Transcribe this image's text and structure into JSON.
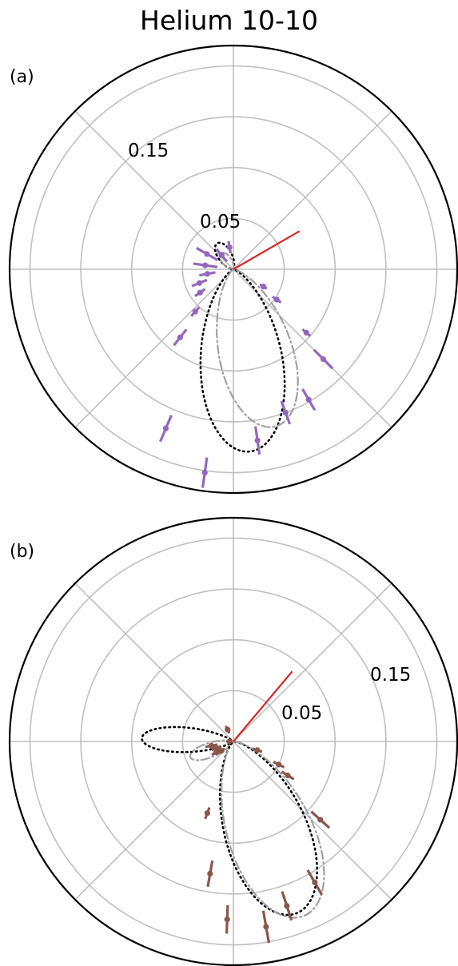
{
  "title": "Helium 10-10",
  "colors": {
    "grid": "#c0c0c0",
    "frame": "#000000",
    "reference_line": "#d62728",
    "series_a": "#9467bd",
    "series_b": "#8c564b",
    "model_dotted": "#000000",
    "model_dashdot": "#a0a0a0"
  },
  "chart_data": [
    {
      "type": "polar",
      "label": "(a)",
      "r_ticks": [
        0.05,
        0.15
      ],
      "r_tick_labels": [
        "0.05",
        "0.15"
      ],
      "r_grid": [
        0.05,
        0.1,
        0.15,
        0.2
      ],
      "r_max": 0.22,
      "angle_grid_deg": [
        0,
        45,
        90,
        135,
        180,
        225,
        270,
        315
      ],
      "reference_line": {
        "angle_deg": 30,
        "length": 0.075
      },
      "measurements": {
        "marker_color": "series_a",
        "points": [
          {
            "angle_deg": 100,
            "r": 0.022,
            "err": 0.006
          },
          {
            "angle_deg": 130,
            "r": 0.018,
            "err": 0.008
          },
          {
            "angle_deg": 150,
            "r": 0.03,
            "err": 0.012
          },
          {
            "angle_deg": 172,
            "r": 0.028,
            "err": 0.012
          },
          {
            "angle_deg": 190,
            "r": 0.026,
            "err": 0.008
          },
          {
            "angle_deg": 202,
            "r": 0.036,
            "err": 0.008
          },
          {
            "angle_deg": 215,
            "r": 0.04,
            "err": 0.006
          },
          {
            "angle_deg": 228,
            "r": 0.056,
            "err": 0.006
          },
          {
            "angle_deg": 232,
            "r": 0.085,
            "err": 0.01
          },
          {
            "angle_deg": 247,
            "r": 0.17,
            "err": 0.014
          },
          {
            "angle_deg": 262,
            "r": 0.202,
            "err": 0.015
          },
          {
            "angle_deg": 278,
            "r": 0.17,
            "err": 0.014
          },
          {
            "angle_deg": 290,
            "r": 0.15,
            "err": 0.012
          },
          {
            "angle_deg": 300,
            "r": 0.148,
            "err": 0.012
          },
          {
            "angle_deg": 315,
            "r": 0.125,
            "err": 0.013
          },
          {
            "angle_deg": 319,
            "r": 0.095,
            "err": 0.005
          },
          {
            "angle_deg": 325,
            "r": 0.052,
            "err": 0.005
          },
          {
            "angle_deg": 330,
            "r": 0.034,
            "err": 0.004
          }
        ]
      },
      "curves": [
        {
          "style": "dotted",
          "lobes": [
            {
              "center_deg": 275,
              "width_deg": 22,
              "peak": 0.18
            },
            {
              "center_deg": 122,
              "width_deg": 22,
              "peak": 0.03
            }
          ]
        },
        {
          "style": "dashdot",
          "lobes": [
            {
              "center_deg": 285,
              "width_deg": 22,
              "peak": 0.16
            },
            {
              "center_deg": 128,
              "width_deg": 22,
              "peak": 0.02
            }
          ]
        }
      ]
    },
    {
      "type": "polar",
      "label": "(b)",
      "r_ticks": [
        0.05,
        0.15
      ],
      "r_tick_labels": [
        "0.05",
        "0.15"
      ],
      "r_grid": [
        0.05,
        0.1,
        0.15,
        0.2
      ],
      "r_max": 0.22,
      "angle_grid_deg": [
        0,
        45,
        90,
        135,
        180,
        225,
        270,
        315
      ],
      "reference_line": {
        "angle_deg": 50,
        "length": 0.09
      },
      "measurements": {
        "marker_color": "series_b",
        "points": [
          {
            "angle_deg": 116,
            "r": 0.013,
            "err": 0.004
          },
          {
            "angle_deg": 180,
            "r": 0.004,
            "err": 0.003
          },
          {
            "angle_deg": 191,
            "r": 0.022,
            "err": 0.006
          },
          {
            "angle_deg": 201,
            "r": 0.018,
            "err": 0.005
          },
          {
            "angle_deg": 212,
            "r": 0.02,
            "err": 0.005
          },
          {
            "angle_deg": 218,
            "r": 0.015,
            "err": 0.004
          },
          {
            "angle_deg": 250,
            "r": 0.075,
            "err": 0.006
          },
          {
            "angle_deg": 260,
            "r": 0.132,
            "err": 0.013
          },
          {
            "angle_deg": 268,
            "r": 0.175,
            "err": 0.014
          },
          {
            "angle_deg": 280,
            "r": 0.185,
            "err": 0.016
          },
          {
            "angle_deg": 288,
            "r": 0.17,
            "err": 0.015
          },
          {
            "angle_deg": 300,
            "r": 0.16,
            "err": 0.014
          },
          {
            "angle_deg": 318,
            "r": 0.115,
            "err": 0.012
          },
          {
            "angle_deg": 328,
            "r": 0.063,
            "err": 0.007
          },
          {
            "angle_deg": 333,
            "r": 0.05,
            "err": 0.006
          },
          {
            "angle_deg": 340,
            "r": 0.025,
            "err": 0.005
          }
        ]
      },
      "curves": [
        {
          "style": "dotted",
          "lobes": [
            {
              "center_deg": 290,
              "width_deg": 22,
              "peak": 0.18
            },
            {
              "center_deg": 178,
              "width_deg": 13,
              "peak": 0.09
            }
          ]
        },
        {
          "style": "dashdot",
          "lobes": [
            {
              "center_deg": 292,
              "width_deg": 22,
              "peak": 0.185
            },
            {
              "center_deg": 200,
              "width_deg": 15,
              "peak": 0.045
            }
          ]
        }
      ]
    }
  ]
}
